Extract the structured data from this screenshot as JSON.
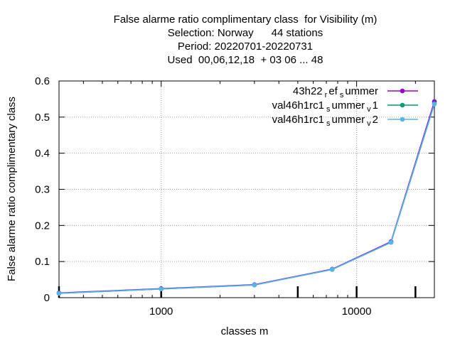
{
  "title": {
    "line1": "False alarme ratio complimentary class  for Visibility (m)",
    "line2": "Selection: Norway      44 stations",
    "line3": "Period: 20220701-20220731",
    "line4": "Used  00,06,12,18  + 03 06 ... 48"
  },
  "chart_data": {
    "type": "line",
    "xlabel": "classes m",
    "ylabel": "False alarme ratio complimentary class",
    "xscale": "log",
    "xlim": [
      300,
      25000
    ],
    "ylim": [
      0,
      0.6
    ],
    "yticks": [
      "0",
      "0.1",
      "0.2",
      "0.3",
      "0.4",
      "0.5",
      "0.6"
    ],
    "xticks": [
      "1000",
      "10000"
    ],
    "grid": true,
    "legend_position": "top-right",
    "series": [
      {
        "name": "43h22_ref_summer",
        "color": "#9400d3",
        "x": [
          300,
          1000,
          3000,
          7500,
          15000,
          25000
        ],
        "y": [
          0.013,
          0.025,
          0.036,
          0.079,
          0.155,
          0.543
        ]
      },
      {
        "name": "val46h1rc1_summer_v1",
        "color": "#009e73",
        "x": [
          300,
          1000,
          3000,
          7500,
          15000,
          25000
        ],
        "y": [
          0.012,
          0.024,
          0.035,
          0.078,
          0.153,
          0.537
        ]
      },
      {
        "name": "val46h1rc1_summer_v2",
        "color": "#56b4e9",
        "x": [
          300,
          1000,
          3000,
          7500,
          15000,
          25000
        ],
        "y": [
          0.012,
          0.024,
          0.035,
          0.078,
          0.153,
          0.536
        ]
      }
    ],
    "legend": [
      {
        "main": "43h22",
        "parts": [
          [
            "sub",
            "r"
          ],
          [
            "main",
            "ef"
          ],
          [
            "sub",
            "s"
          ],
          [
            "main",
            "ummer"
          ]
        ]
      },
      {
        "main": "val46h1rc1",
        "parts": [
          [
            "sub",
            "s"
          ],
          [
            "main",
            "ummer"
          ],
          [
            "sub",
            "v"
          ],
          [
            "main",
            "1"
          ]
        ]
      },
      {
        "main": "val46h1rc1",
        "parts": [
          [
            "sub",
            "s"
          ],
          [
            "main",
            "ummer"
          ],
          [
            "sub",
            "v"
          ],
          [
            "main",
            "2"
          ]
        ]
      }
    ],
    "threshold_markers_x": [
      300,
      1000,
      5000,
      10000,
      20000
    ]
  }
}
